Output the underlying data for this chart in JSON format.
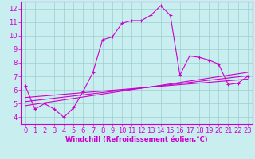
{
  "xlabel": "Windchill (Refroidissement éolien,°C)",
  "background_color": "#c8eef0",
  "line_color": "#cc00cc",
  "grid_color": "#9dcfcf",
  "xlim": [
    -0.5,
    23.5
  ],
  "ylim": [
    3.5,
    12.5
  ],
  "xticks": [
    0,
    1,
    2,
    3,
    4,
    5,
    6,
    7,
    8,
    9,
    10,
    11,
    12,
    13,
    14,
    15,
    16,
    17,
    18,
    19,
    20,
    21,
    22,
    23
  ],
  "yticks": [
    4,
    5,
    6,
    7,
    8,
    9,
    10,
    11,
    12
  ],
  "series1_x": [
    0,
    1,
    2,
    3,
    4,
    5,
    6,
    7,
    8,
    9,
    10,
    11,
    12,
    13,
    14,
    15,
    16,
    17,
    18,
    19,
    20,
    21,
    22,
    23
  ],
  "series1_y": [
    6.3,
    4.6,
    5.0,
    4.6,
    4.0,
    4.7,
    5.9,
    7.3,
    9.7,
    9.9,
    10.9,
    11.1,
    11.1,
    11.5,
    12.2,
    11.5,
    7.1,
    8.5,
    8.4,
    8.2,
    7.9,
    6.4,
    6.5,
    7.0
  ],
  "series2_x": [
    0,
    23
  ],
  "series2_y": [
    4.85,
    7.3
  ],
  "series3_x": [
    0,
    23
  ],
  "series3_y": [
    5.15,
    7.05
  ],
  "series4_x": [
    0,
    23
  ],
  "series4_y": [
    5.45,
    6.8
  ],
  "tick_fontsize": 6,
  "xlabel_fontsize": 6
}
